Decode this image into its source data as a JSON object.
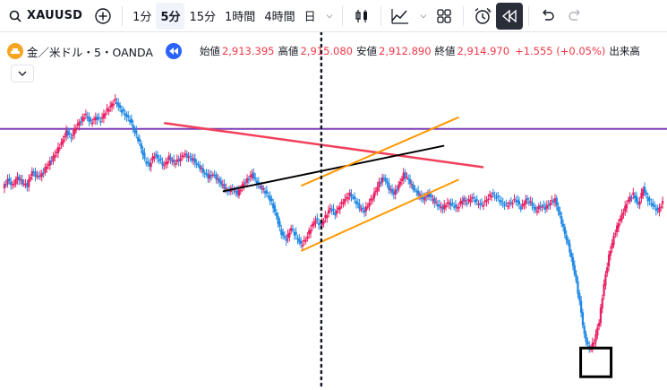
{
  "toolbar": {
    "symbol": "XAUUSD",
    "intervals": [
      "1分",
      "5分",
      "15分",
      "1時間",
      "4時間",
      "日"
    ],
    "active_interval": "5分"
  },
  "legend": {
    "title": "金／米ドル・5・OANDA",
    "open_label": "始値",
    "open": "2,913.395",
    "high_label": "高値",
    "high": "2,915.080",
    "low_label": "安値",
    "low": "2,912.890",
    "close_label": "終値",
    "close": "2,914.970",
    "change": "+1.555 (+0.05%)",
    "volume_label": "出来高"
  },
  "colors": {
    "up": "#089981",
    "down": "#f23645",
    "candle_up": "#e91e63",
    "candle_down": "#1e88e5",
    "horizontal_line": "#7e3fb8",
    "trend_red": "#f23f5a",
    "trend_black": "#000000",
    "channel_orange": "#ff9800"
  },
  "chart_data": {
    "type": "candlestick",
    "title": "",
    "ylim": [
      0,
      100
    ],
    "y_series": [
      62,
      65,
      63,
      66,
      64,
      63,
      68,
      66,
      67,
      70,
      72,
      75,
      78,
      82,
      80,
      84,
      86,
      88,
      85,
      87,
      86,
      89,
      91,
      93,
      90,
      88,
      86,
      82,
      78,
      72,
      70,
      74,
      72,
      70,
      73,
      71,
      72,
      74,
      73,
      72,
      70,
      68,
      66,
      67,
      65,
      63,
      61,
      62,
      60,
      63,
      65,
      67,
      64,
      62,
      60,
      57,
      52,
      46,
      44,
      48,
      45,
      42,
      44,
      48,
      51,
      49,
      52,
      55,
      53,
      56,
      58,
      60,
      58,
      55,
      54,
      57,
      60,
      64,
      66,
      62,
      60,
      63,
      67,
      65,
      62,
      60,
      58,
      60,
      58,
      56,
      55,
      57,
      56,
      55,
      58,
      57,
      59,
      57,
      56,
      58,
      60,
      59,
      57,
      56,
      57,
      58,
      55,
      58,
      57,
      54,
      56,
      55,
      57,
      58,
      52,
      46,
      40,
      32,
      22,
      10,
      5,
      8,
      15,
      28,
      38,
      45,
      50,
      54,
      58,
      60,
      56,
      62,
      58,
      56,
      54,
      57
    ],
    "annotations": {
      "horizontal_line": 83,
      "vertical_cursor_index": 65,
      "highlight_box_index": 121
    }
  }
}
